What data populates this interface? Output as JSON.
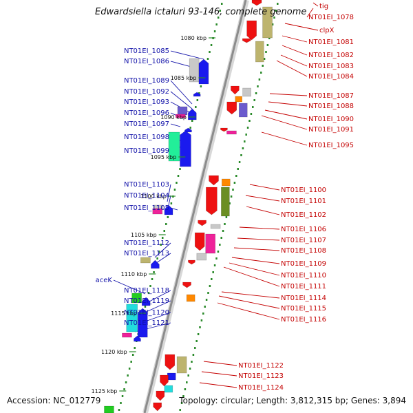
{
  "title": "Edwardsiella ictaluri 93-146, complete genome",
  "footer": {
    "accession": "Accession: NC_012779",
    "summary": "Topology: circular; Length: 3,812,315 bp; Genes: 3,894"
  },
  "ticks": [
    "1080 kbp",
    "1085 kbp",
    "1090 kbp",
    "1095 kbp",
    "1100 kbp",
    "1105 kbp",
    "1110 kbp",
    "1115 kbp",
    "1120 kbp",
    "1125 kbp"
  ],
  "left_labels": [
    "NT01EI_1085",
    "NT01EI_1086",
    "NT01EI_1089",
    "NT01EI_1092",
    "NT01EI_1093",
    "NT01EI_1096",
    "NT01EI_1097",
    "NT01EI_1098",
    "NT01EI_1099",
    "NT01EI_1103",
    "NT01EI_1104",
    "NT01EI_1105",
    "NT01EI_1112",
    "NT01EI_1113",
    "aceK",
    "NT01EI_1118",
    "NT01EI_1119",
    "NT01EI_1120",
    "NT01EI_1121"
  ],
  "right_labels": [
    "tig",
    "NT01EI_1078",
    "clpX",
    "NT01EI_1081",
    "NT01EI_1082",
    "NT01EI_1083",
    "NT01EI_1084",
    "NT01EI_1087",
    "NT01EI_1088",
    "NT01EI_1090",
    "NT01EI_1091",
    "NT01EI_1095",
    "NT01EI_1100",
    "NT01EI_1101",
    "NT01EI_1102",
    "NT01EI_1106",
    "NT01EI_1107",
    "NT01EI_1108",
    "NT01EI_1109",
    "NT01EI_1110",
    "NT01EI_1111",
    "NT01EI_1114",
    "NT01EI_1115",
    "NT01EI_1116",
    "NT01EI_1122",
    "NT01EI_1123",
    "NT01EI_1124"
  ],
  "colors": {
    "backbone": "#8c8c8c",
    "tick_line": "#2a8a2a",
    "left_label": "#1010a8",
    "right_label": "#c40000",
    "red": "#ee1111",
    "olive": "#bdb46e",
    "dark_olive": "#6b8e23",
    "blue": "#1a1aee",
    "light_gray": "#c8c8c8",
    "pink": "#ee2299",
    "purple": "#6a5acd",
    "green": "#22cc22",
    "cyan": "#22dddd",
    "aqua_green": "#22ee99",
    "orange": "#ff8800"
  }
}
